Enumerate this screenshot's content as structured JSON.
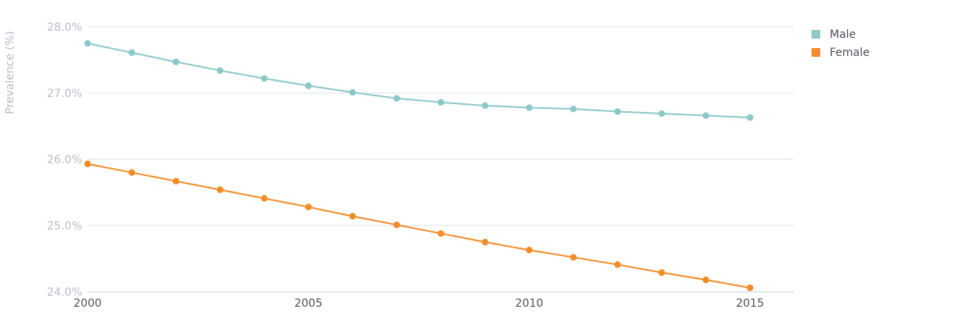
{
  "chart_data": {
    "type": "line",
    "ylabel": "Prevalence (%)",
    "xlabel": "",
    "x": [
      2000,
      2001,
      2002,
      2003,
      2004,
      2005,
      2006,
      2007,
      2008,
      2009,
      2010,
      2011,
      2012,
      2013,
      2014,
      2015
    ],
    "xlim": [
      2000,
      2016
    ],
    "ylim": [
      24.0,
      28.0
    ],
    "xticks": [
      2000,
      2005,
      2010,
      2015
    ],
    "xtick_labels": [
      "2000",
      "2005",
      "2010",
      "2015"
    ],
    "yticks": [
      24.0,
      25.0,
      26.0,
      27.0,
      28.0
    ],
    "ytick_labels": [
      "24.0%",
      "25.0%",
      "26.0%",
      "27.0%",
      "28.0%"
    ],
    "grid": true,
    "legend_position": "right",
    "series": [
      {
        "name": "Male",
        "color": "#8cc8c8",
        "values": [
          27.75,
          27.61,
          27.47,
          27.34,
          27.22,
          27.11,
          27.01,
          26.92,
          26.86,
          26.81,
          26.78,
          26.76,
          26.72,
          26.69,
          26.66,
          26.63
        ]
      },
      {
        "name": "Female",
        "color": "#f28c28",
        "values": [
          25.93,
          25.8,
          25.67,
          25.54,
          25.41,
          25.28,
          25.14,
          25.01,
          24.88,
          24.75,
          24.63,
          24.52,
          24.41,
          24.29,
          24.18,
          24.06
        ]
      }
    ]
  }
}
